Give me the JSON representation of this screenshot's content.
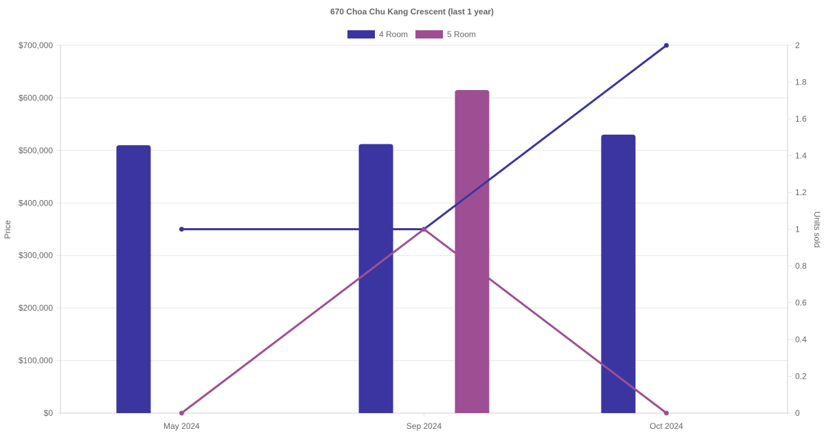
{
  "chart_data": {
    "type": "bar",
    "title": "670 Choa Chu Kang Crescent (last 1 year)",
    "categories": [
      "May 2024",
      "Sep 2024",
      "Oct 2024"
    ],
    "ylabel": "Price",
    "y2label": "Units sold",
    "ylim": [
      0,
      700000
    ],
    "y2lim": [
      0,
      2
    ],
    "yticks": [
      "$0",
      "$100,000",
      "$200,000",
      "$300,000",
      "$400,000",
      "$500,000",
      "$600,000",
      "$700,000"
    ],
    "y2ticks": [
      "0",
      "0.2",
      "0.4",
      "0.6",
      "0.8",
      "1",
      "1.2",
      "1.4",
      "1.6",
      "1.8",
      "2"
    ],
    "legend_position": "top",
    "grid": true,
    "series": [
      {
        "name": "4 Room",
        "color": "#3a35a1",
        "price": [
          510000,
          512000,
          530000
        ],
        "units_sold": [
          1,
          1,
          2
        ]
      },
      {
        "name": "5 Room",
        "color": "#9e4f93",
        "price": [
          null,
          615000,
          null
        ],
        "units_sold": [
          0,
          1,
          0
        ]
      }
    ]
  }
}
